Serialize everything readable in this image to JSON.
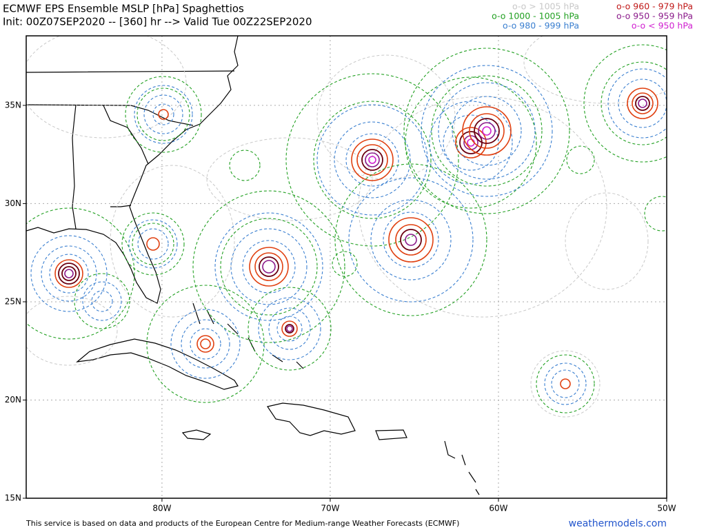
{
  "header": {
    "title": "ECMWF EPS Ensemble MSLP [hPa] Spaghettios",
    "subtitle": "Init: 00Z07SEP2020 -- [360] hr --> Valid Tue 00Z22SEP2020"
  },
  "legend": [
    {
      "label": "o-o > 1005 hPa",
      "color": "#c8c8c8"
    },
    {
      "label": "o-o 1000 - 1005 hPa",
      "color": "#22a022"
    },
    {
      "label": "o-o 980 - 999 hPa",
      "color": "#3a7fd0"
    },
    {
      "label": "o-o 960 - 979 hPa",
      "color": "#c01818"
    },
    {
      "label": "o-o 950 - 959 hPa",
      "color": "#8a1a8a"
    },
    {
      "label": "o-o < 950 hPa",
      "color": "#d020d0"
    }
  ],
  "map": {
    "xlim": [
      -88.07,
      -50
    ],
    "ylim": [
      15,
      38.54
    ],
    "xticks": [
      {
        "value": -80,
        "label": "80W"
      },
      {
        "value": -70,
        "label": "70W"
      },
      {
        "value": -60,
        "label": "60W"
      },
      {
        "value": -50,
        "label": "50W"
      }
    ],
    "yticks": [
      {
        "value": 35,
        "label": "35N"
      },
      {
        "value": 30,
        "label": "30N"
      },
      {
        "value": 25,
        "label": "25N"
      },
      {
        "value": 20,
        "label": "20N"
      },
      {
        "value": 15,
        "label": "15N"
      }
    ]
  },
  "footer": {
    "text": "This service is based on data and products of the European Centre for Medium-range Weather Forecasts (ECMWF)",
    "site": "weathermodels.com"
  }
}
